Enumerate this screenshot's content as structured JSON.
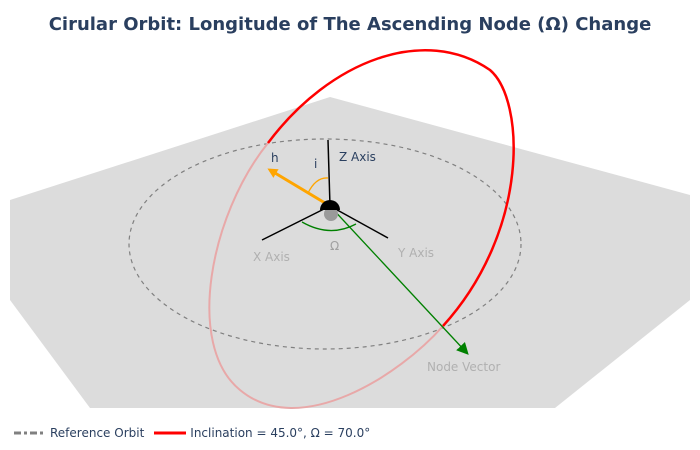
{
  "title": "Cirular Orbit: Longitude of The Ascending Node (Ω) Change",
  "labels": {
    "h": "h",
    "i": "i",
    "z_axis": "Z Axis",
    "x_axis": "X Axis",
    "y_axis": "Y Axis",
    "omega": "Ω",
    "node_vector": "Node Vector"
  },
  "legend": [
    {
      "name": "Reference Orbit",
      "color": "#808080",
      "style": "dashed"
    },
    {
      "name": "Inclination = 45.0°, Ω = 70.0°",
      "color": "#ff0000",
      "style": "solid"
    }
  ],
  "parameters": {
    "inclination_deg": 45.0,
    "raan_deg": 70.0
  },
  "colors": {
    "plane": "#dcdcdc",
    "orbit": "#ff0000",
    "orbit_back": "#e8a8a8",
    "reference": "#808080",
    "h_vector": "#ffa500",
    "node_vector": "#008000",
    "axes": "#000000",
    "title": "#2a3f5f",
    "axis_label": "#b0b0b0"
  }
}
